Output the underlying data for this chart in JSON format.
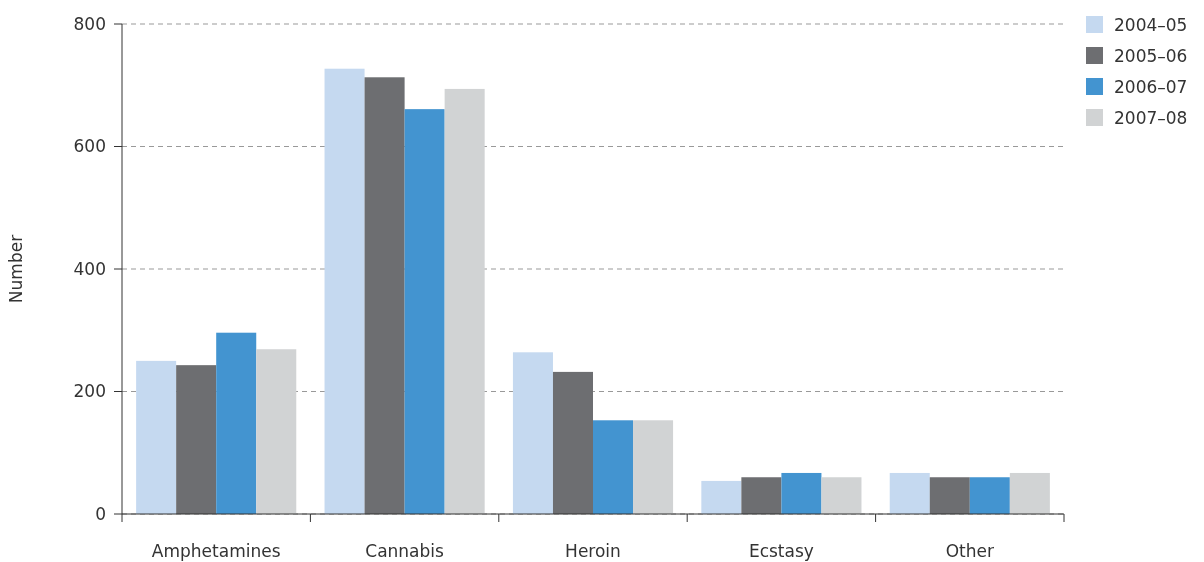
{
  "chart_data": {
    "type": "bar",
    "ylabel": "Number",
    "categories": [
      "Amphetamines",
      "Cannabis",
      "Heroin",
      "Ecstasy",
      "Other"
    ],
    "series": [
      {
        "name": "2004–05",
        "color": "#c5d9f0",
        "values": [
          250,
          727,
          264,
          54,
          67
        ]
      },
      {
        "name": "2005–06",
        "color": "#6d6e71",
        "values": [
          243,
          713,
          232,
          60,
          60
        ]
      },
      {
        "name": "2006–07",
        "color": "#4394d0",
        "values": [
          296,
          661,
          153,
          67,
          60
        ]
      },
      {
        "name": "2007–08",
        "color": "#d1d3d4",
        "values": [
          269,
          694,
          153,
          60,
          67
        ]
      }
    ],
    "ylim": [
      0,
      800
    ],
    "yticks": [
      0,
      200,
      400,
      600,
      800
    ],
    "grid": "y",
    "legend": "top right"
  }
}
